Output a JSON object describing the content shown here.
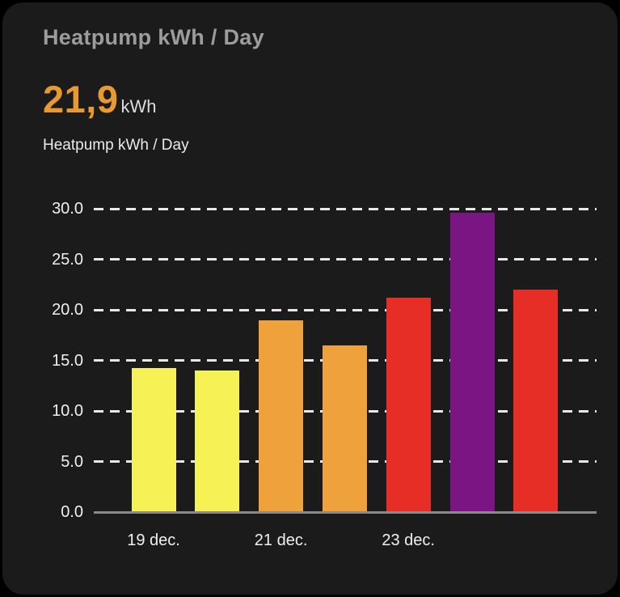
{
  "card": {
    "title": "Heatpump kWh / Day",
    "stat": {
      "value": "21,9",
      "unit": "kWh"
    },
    "subtitle": "Heatpump kWh / Day"
  },
  "colors": {
    "page_bg": "#000000",
    "card_bg": "#1b1b1b",
    "title_text": "#9c9c9c",
    "stat_value": "#e8992f",
    "stat_unit": "#dcdcdc",
    "subtitle_text": "#ebebeb",
    "axis_text": "#f0f0f0",
    "gridline": "#e8e8e8",
    "axis_line": "#8a8a8a"
  },
  "chart_data": {
    "type": "bar",
    "title": "Heatpump kWh / Day",
    "categories": [
      "19 dec.",
      "",
      "21 dec.",
      "",
      "23 dec.",
      "",
      ""
    ],
    "values": [
      14.2,
      13.9,
      18.9,
      16.4,
      21.1,
      29.5,
      21.9
    ],
    "bar_colors": [
      "#f6f155",
      "#f6f155",
      "#efa23c",
      "#efa23c",
      "#e62d26",
      "#7b1583",
      "#e62d26"
    ],
    "ylim": [
      0,
      30
    ],
    "ytick_values": [
      0,
      5,
      10,
      15,
      20,
      25,
      30
    ],
    "ytick_labels": [
      "0.0",
      "5.0",
      "10.0",
      "15.0",
      "20.0",
      "25.0",
      "30.0"
    ],
    "grid": "horizontal-dashed",
    "legend": "none",
    "ylabel": "",
    "xlabel": ""
  }
}
